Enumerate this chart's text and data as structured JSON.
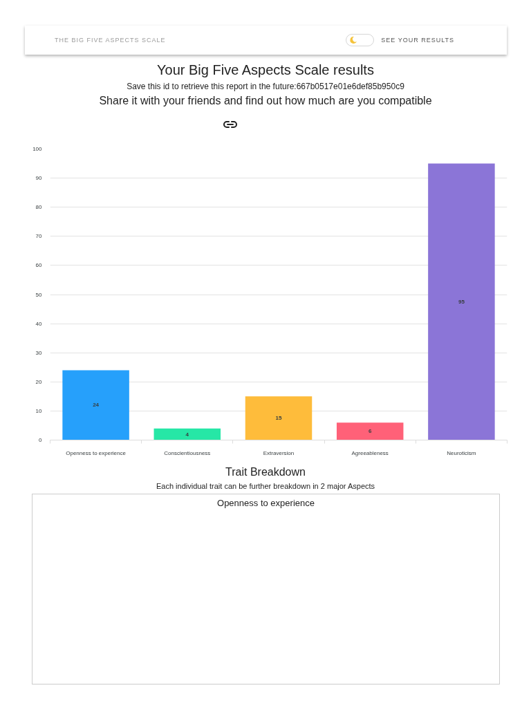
{
  "chart_data": [
    {
      "type": "bar",
      "title": "Your Big Five Aspects Scale results",
      "subtitle": "Save this id to retrieve this report in the future:667b0517e01e6def85b950c9",
      "annotations": [
        "THE BIG FIVE ASPECTS SCALE",
        "SEE YOUR RESULTS",
        "Share it with your friends and find out how much are you compatible"
      ],
      "categories": [
        "Openness to experience",
        "Conscientiousness",
        "Extraversion",
        "Agreeableness",
        "Neuroticism"
      ],
      "values": [
        24,
        4,
        15,
        6,
        95
      ],
      "colors": [
        "#26a0fb",
        "#26e7a6",
        "#febc3b",
        "#ff6178",
        "#8b75d7"
      ],
      "ylim": [
        0,
        100
      ],
      "yticks": [
        0,
        10,
        20,
        30,
        40,
        50,
        60,
        70,
        80,
        90,
        100
      ],
      "grid": "y",
      "data_labels": true
    },
    {
      "type": "other",
      "title": "Trait Breakdown",
      "subtitle": "Each individual trait can be further breakdown in 2 major Aspects",
      "annotations": [
        "Openness to experience"
      ]
    }
  ]
}
